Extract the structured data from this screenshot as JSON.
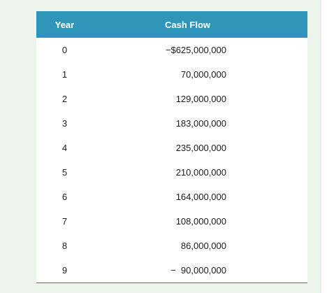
{
  "table": {
    "headers": {
      "year": "Year",
      "cash_flow": "Cash Flow"
    },
    "rows": [
      {
        "year": "0",
        "cash_flow": "−$625,000,000"
      },
      {
        "year": "1",
        "cash_flow": "70,000,000"
      },
      {
        "year": "2",
        "cash_flow": "129,000,000"
      },
      {
        "year": "3",
        "cash_flow": "183,000,000"
      },
      {
        "year": "4",
        "cash_flow": "235,000,000"
      },
      {
        "year": "5",
        "cash_flow": "210,000,000"
      },
      {
        "year": "6",
        "cash_flow": "164,000,000"
      },
      {
        "year": "7",
        "cash_flow": "108,000,000"
      },
      {
        "year": "8",
        "cash_flow": "86,000,000"
      },
      {
        "year": "9",
        "cash_flow": "−  90,000,000"
      }
    ]
  },
  "colors": {
    "header_bg": "#3096b9",
    "panel_bg": "#edf4ec"
  }
}
